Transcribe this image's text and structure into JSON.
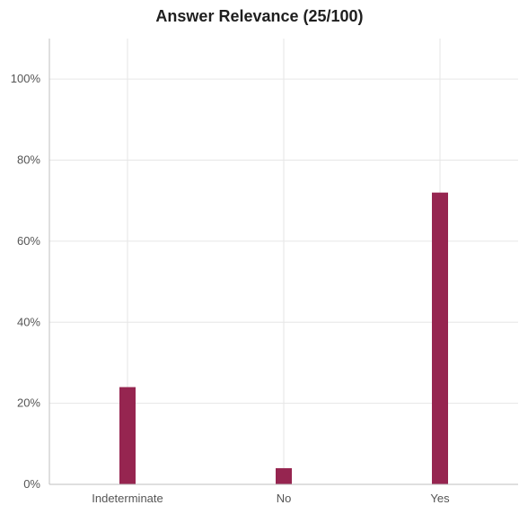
{
  "chart_data": {
    "type": "bar",
    "title": "Answer Relevance (25/100)",
    "xlabel": "",
    "ylabel": "",
    "categories": [
      "Indeterminate",
      "No",
      "Yes"
    ],
    "values": [
      24,
      4,
      72
    ],
    "ylim": [
      0,
      110
    ],
    "y_ticks": [
      0,
      20,
      40,
      60,
      80,
      100
    ],
    "y_tick_format": "percent",
    "grid": true,
    "bar_color": "#962550",
    "grid_color": "#e6e6e6"
  }
}
